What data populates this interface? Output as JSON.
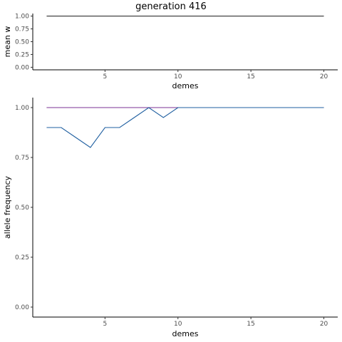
{
  "title": "generation 416",
  "chart_data": [
    {
      "type": "line",
      "xlabel": "demes",
      "ylabel": "mean w",
      "xlim": [
        0.05,
        20.95
      ],
      "ylim": [
        -0.05,
        1.05
      ],
      "xticks": [
        5,
        10,
        15,
        20
      ],
      "yticks": [
        0.0,
        0.25,
        0.5,
        0.75,
        1.0
      ],
      "ytick_labels": [
        "0.00",
        "0.25",
        "0.50",
        "0.75",
        "1.00"
      ],
      "grid": false,
      "series": [
        {
          "color": "#333333",
          "x": [
            1,
            20
          ],
          "y": [
            1.0,
            1.0
          ]
        }
      ]
    },
    {
      "type": "line",
      "xlabel": "demes",
      "ylabel": "allele frequency",
      "xlim": [
        0.05,
        20.95
      ],
      "ylim": [
        -0.05,
        1.05
      ],
      "xticks": [
        5,
        10,
        15,
        20
      ],
      "yticks": [
        0.0,
        0.25,
        0.5,
        0.75,
        1.0
      ],
      "ytick_labels": [
        "0.00",
        "0.25",
        "0.50",
        "0.75",
        "1.00"
      ],
      "grid": false,
      "series": [
        {
          "color": "#b2182b",
          "x": [
            1,
            20
          ],
          "y": [
            1.0,
            1.0
          ]
        },
        {
          "color": "#7b3294",
          "x": [
            1,
            20
          ],
          "y": [
            1.0,
            1.0
          ]
        },
        {
          "color": "#1f5fa0",
          "x": [
            1,
            2,
            3,
            4,
            5,
            6,
            7,
            8,
            9,
            10,
            11,
            12,
            13,
            14,
            15,
            16,
            17,
            18,
            19,
            20
          ],
          "y": [
            0.9,
            0.9,
            0.85,
            0.8,
            0.9,
            0.9,
            0.95,
            1.0,
            0.95,
            1.0,
            1.0,
            1.0,
            1.0,
            1.0,
            1.0,
            1.0,
            1.0,
            1.0,
            1.0,
            1.0
          ]
        }
      ]
    }
  ]
}
